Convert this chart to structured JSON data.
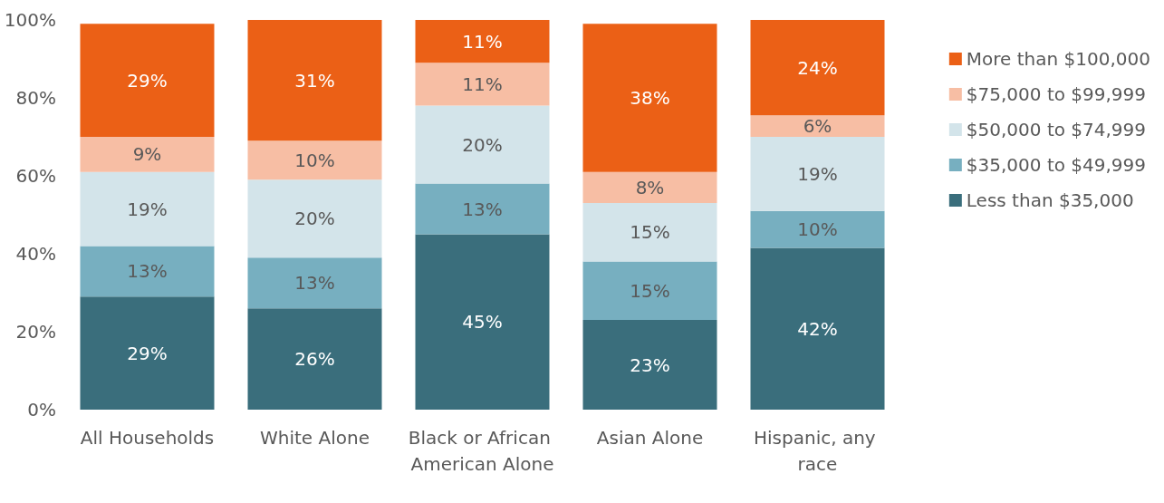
{
  "chart_data": {
    "type": "bar",
    "stacked": true,
    "categories": [
      "All Households",
      "White Alone",
      "Black or African American Alone",
      "Asian Alone",
      "Hispanic, any race"
    ],
    "series": [
      {
        "name": "Less than $35,000",
        "color": "#3a6e7c",
        "values": [
          29,
          26,
          45,
          23,
          41.5
        ],
        "value_labels": [
          "29%",
          "26%",
          "45%",
          "23%",
          "42%"
        ]
      },
      {
        "name": "$35,000 to $49,999",
        "color": "#77afc0",
        "values": [
          13,
          13,
          13,
          15,
          9.5
        ],
        "value_labels": [
          "13%",
          "13%",
          "13%",
          "15%",
          "10%"
        ]
      },
      {
        "name": "$50,000 to $74,999",
        "color": "#d3e4ea",
        "values": [
          19,
          20,
          20,
          15,
          19
        ],
        "value_labels": [
          "19%",
          "20%",
          "20%",
          "15%",
          "19%"
        ]
      },
      {
        "name": "$75,000 to $99,999",
        "color": "#f7bea4",
        "values": [
          9,
          10,
          11,
          8,
          5.5
        ],
        "value_labels": [
          "9%",
          "10%",
          "11%",
          "8%",
          "6%"
        ]
      },
      {
        "name": "More than $100,000",
        "color": "#eb6016",
        "values": [
          29,
          31,
          11,
          38,
          24.5
        ],
        "value_labels": [
          "29%",
          "31%",
          "11%",
          "38%",
          "24%"
        ]
      }
    ],
    "ylim": [
      0,
      100
    ],
    "yticks": [
      {
        "value": 0,
        "label": "0%"
      },
      {
        "value": 20,
        "label": "20%"
      },
      {
        "value": 40,
        "label": "40%"
      },
      {
        "value": 60,
        "label": "60%"
      },
      {
        "value": 80,
        "label": "80%"
      },
      {
        "value": 100,
        "label": "100%"
      }
    ],
    "grid": false,
    "legend": "right"
  }
}
